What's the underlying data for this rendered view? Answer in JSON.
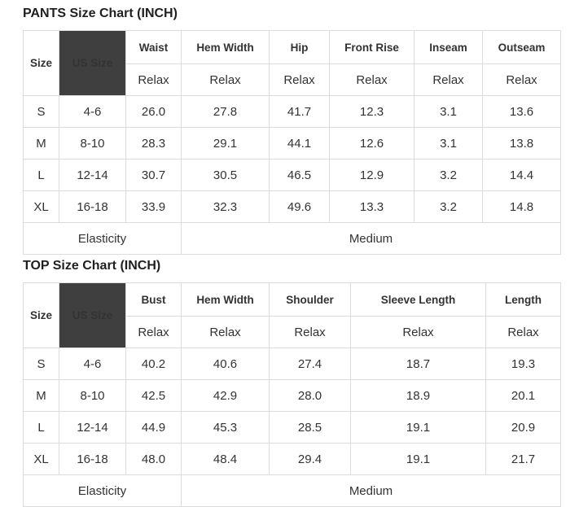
{
  "colors": {
    "border": "#dcdcdc",
    "dark_header_bg": "#3f3f3f",
    "dark_header_text": "#ffffff",
    "text": "#333333",
    "title": "#1f1f1f"
  },
  "pants_chart": {
    "title": "PANTS Size Chart (INCH)",
    "size_header": "Size",
    "us_size_header": "US Size",
    "measure_headers": [
      "Waist",
      "Hem Width",
      "Hip",
      "Front Rise",
      "Inseam",
      "Outseam"
    ],
    "fit_labels": [
      "Relax",
      "Relax",
      "Relax",
      "Relax",
      "Relax",
      "Relax"
    ],
    "rows": [
      [
        "S",
        "4-6",
        "26.0",
        "27.8",
        "41.7",
        "12.3",
        "3.1",
        "13.6"
      ],
      [
        "M",
        "8-10",
        "28.3",
        "29.1",
        "44.1",
        "12.6",
        "3.1",
        "13.8"
      ],
      [
        "L",
        "12-14",
        "30.7",
        "30.5",
        "46.5",
        "12.9",
        "3.2",
        "14.4"
      ],
      [
        "XL",
        "16-18",
        "33.9",
        "32.3",
        "49.6",
        "13.3",
        "3.2",
        "14.8"
      ]
    ],
    "footer": {
      "label": "Elasticity",
      "value": "Medium"
    }
  },
  "top_chart": {
    "title": "TOP Size Chart (INCH)",
    "size_header": "Size",
    "us_size_header": "US Size",
    "measure_headers": [
      "Bust",
      "Hem Width",
      "Shoulder",
      "Sleeve Length",
      "Length"
    ],
    "fit_labels": [
      "Relax",
      "Relax",
      "Relax",
      "Relax",
      "Relax"
    ],
    "rows": [
      [
        "S",
        "4-6",
        "40.2",
        "40.6",
        "27.4",
        "18.7",
        "19.3"
      ],
      [
        "M",
        "8-10",
        "42.5",
        "42.9",
        "28.0",
        "18.9",
        "20.1"
      ],
      [
        "L",
        "12-14",
        "44.9",
        "45.3",
        "28.5",
        "19.1",
        "20.9"
      ],
      [
        "XL",
        "16-18",
        "48.0",
        "48.4",
        "29.4",
        "19.1",
        "21.7"
      ]
    ],
    "footer": {
      "label": "Elasticity",
      "value": "Medium"
    }
  }
}
